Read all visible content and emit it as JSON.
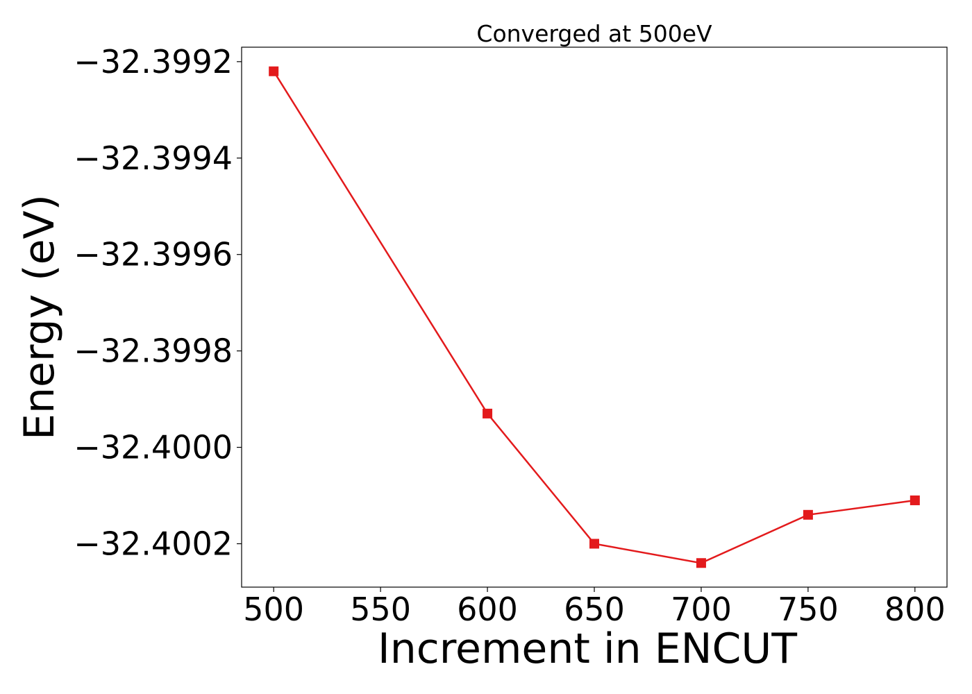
{
  "chart_data": {
    "type": "line",
    "title": "Converged at 500eV",
    "xlabel": "Increment in ENCUT",
    "ylabel": "Energy (eV)",
    "x": [
      500,
      600,
      650,
      700,
      750,
      800
    ],
    "series": [
      {
        "values": [
          -32.39922,
          -32.39993,
          -32.4002,
          -32.40024,
          -32.40014,
          -32.40011
        ],
        "color": "#e31a1c",
        "marker": "square"
      }
    ],
    "xticks": [
      500,
      550,
      600,
      650,
      700,
      750,
      800
    ],
    "xtick_labels": [
      "500",
      "550",
      "600",
      "650",
      "700",
      "750",
      "800"
    ],
    "yticks": [
      -32.3992,
      -32.3994,
      -32.3996,
      -32.3998,
      -32.4,
      -32.4002
    ],
    "ytick_labels": [
      "−32.3992",
      "−32.3994",
      "−32.3996",
      "−32.3998",
      "−32.4000",
      "−32.4002"
    ],
    "xlim": [
      485,
      815
    ],
    "ylim": [
      -32.40029,
      -32.39917
    ],
    "grid": false,
    "legend": "none"
  }
}
